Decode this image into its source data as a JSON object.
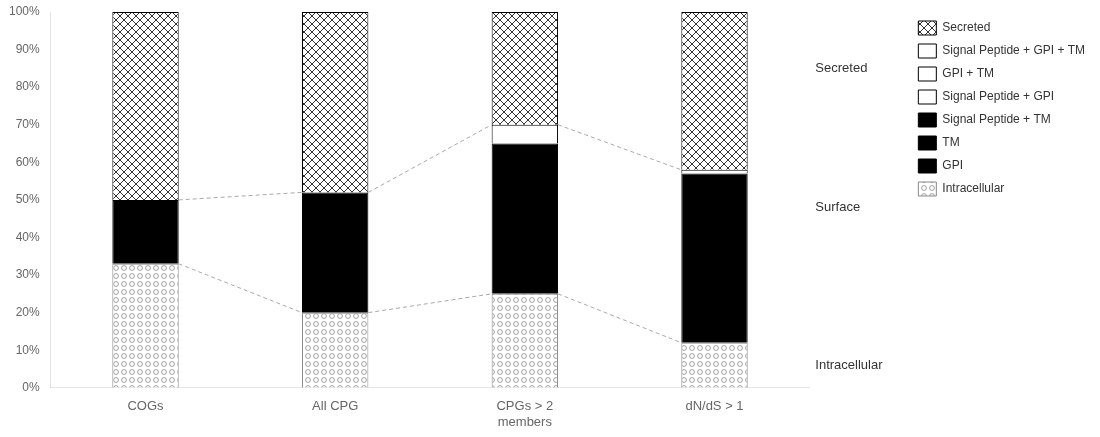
{
  "chart_data": {
    "type": "bar",
    "categories": [
      "COGs",
      "All CPG",
      "CPGs > 2\nmembers",
      "dN/dS > 1"
    ],
    "series": [
      {
        "name": "Intracellular",
        "color": "#ffffff",
        "values": [
          33,
          20,
          25,
          12
        ]
      },
      {
        "name": "GPI",
        "color": "#000000",
        "values": [
          null,
          null,
          null,
          null
        ]
      },
      {
        "name": "TM",
        "color": "#000000",
        "values": [
          17,
          32,
          40,
          45
        ]
      },
      {
        "name": "Signal Peptide + TM",
        "color": "#000000",
        "values": [
          null,
          null,
          null,
          null
        ]
      },
      {
        "name": "Signal Peptide + GPI",
        "color": "#ffffff",
        "values": [
          0,
          0,
          5,
          1
        ]
      },
      {
        "name": "GPI + TM",
        "color": "#ffffff",
        "values": [
          null,
          null,
          null,
          null
        ]
      },
      {
        "name": "Signal Peptide + GPI + TM",
        "color": "#ffffff",
        "values": [
          null,
          null,
          null,
          null
        ]
      },
      {
        "name": "Secreted",
        "color": "#ffffff",
        "values": [
          50,
          48,
          30,
          42
        ]
      }
    ],
    "stacked": true,
    "ylim": [
      0,
      100
    ],
    "yticks": [
      {
        "value": 0,
        "label": "0%"
      },
      {
        "value": 10,
        "label": "10%"
      },
      {
        "value": 20,
        "label": "20%"
      },
      {
        "value": 30,
        "label": "30%"
      },
      {
        "value": 40,
        "label": "40%"
      },
      {
        "value": 50,
        "label": "50%"
      },
      {
        "value": 60,
        "label": "60%"
      },
      {
        "value": 70,
        "label": "70%"
      },
      {
        "value": 80,
        "label": "80%"
      },
      {
        "value": 90,
        "label": "90%"
      },
      {
        "value": 100,
        "label": "100%"
      }
    ],
    "grid": false,
    "legend": "right",
    "annotations": [
      {
        "text": "Secreted",
        "y": 85
      },
      {
        "text": "Surface",
        "y": 48
      },
      {
        "text": "Intracellular",
        "y": 6
      }
    ]
  }
}
